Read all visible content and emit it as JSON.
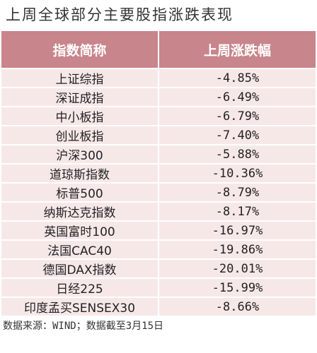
{
  "header": {
    "title": "上周全球部分主要股指涨跌表现"
  },
  "table": {
    "columns": [
      "指数简称",
      "上周涨跌幅"
    ],
    "rows": [
      [
        "上证综指",
        "-4.85%"
      ],
      [
        "深证成指",
        "-6.49%"
      ],
      [
        "中小板指",
        "-6.79%"
      ],
      [
        "创业板指",
        "-7.40%"
      ],
      [
        "沪深300",
        "-5.88%"
      ],
      [
        "道琼斯指数",
        "-10.36%"
      ],
      [
        "标普500",
        "-8.79%"
      ],
      [
        "纳斯达克指数",
        "-8.17%"
      ],
      [
        "英国富时100",
        "-16.97%"
      ],
      [
        "法国CAC40",
        "-19.86%"
      ],
      [
        "德国DAX指数",
        "-20.01%"
      ],
      [
        "日经225",
        "-15.99%"
      ],
      [
        "印度孟买SENSEX30",
        "-8.66%"
      ]
    ]
  },
  "footer": {
    "note": "数据来源：WIND；数据截至3月15日"
  }
}
